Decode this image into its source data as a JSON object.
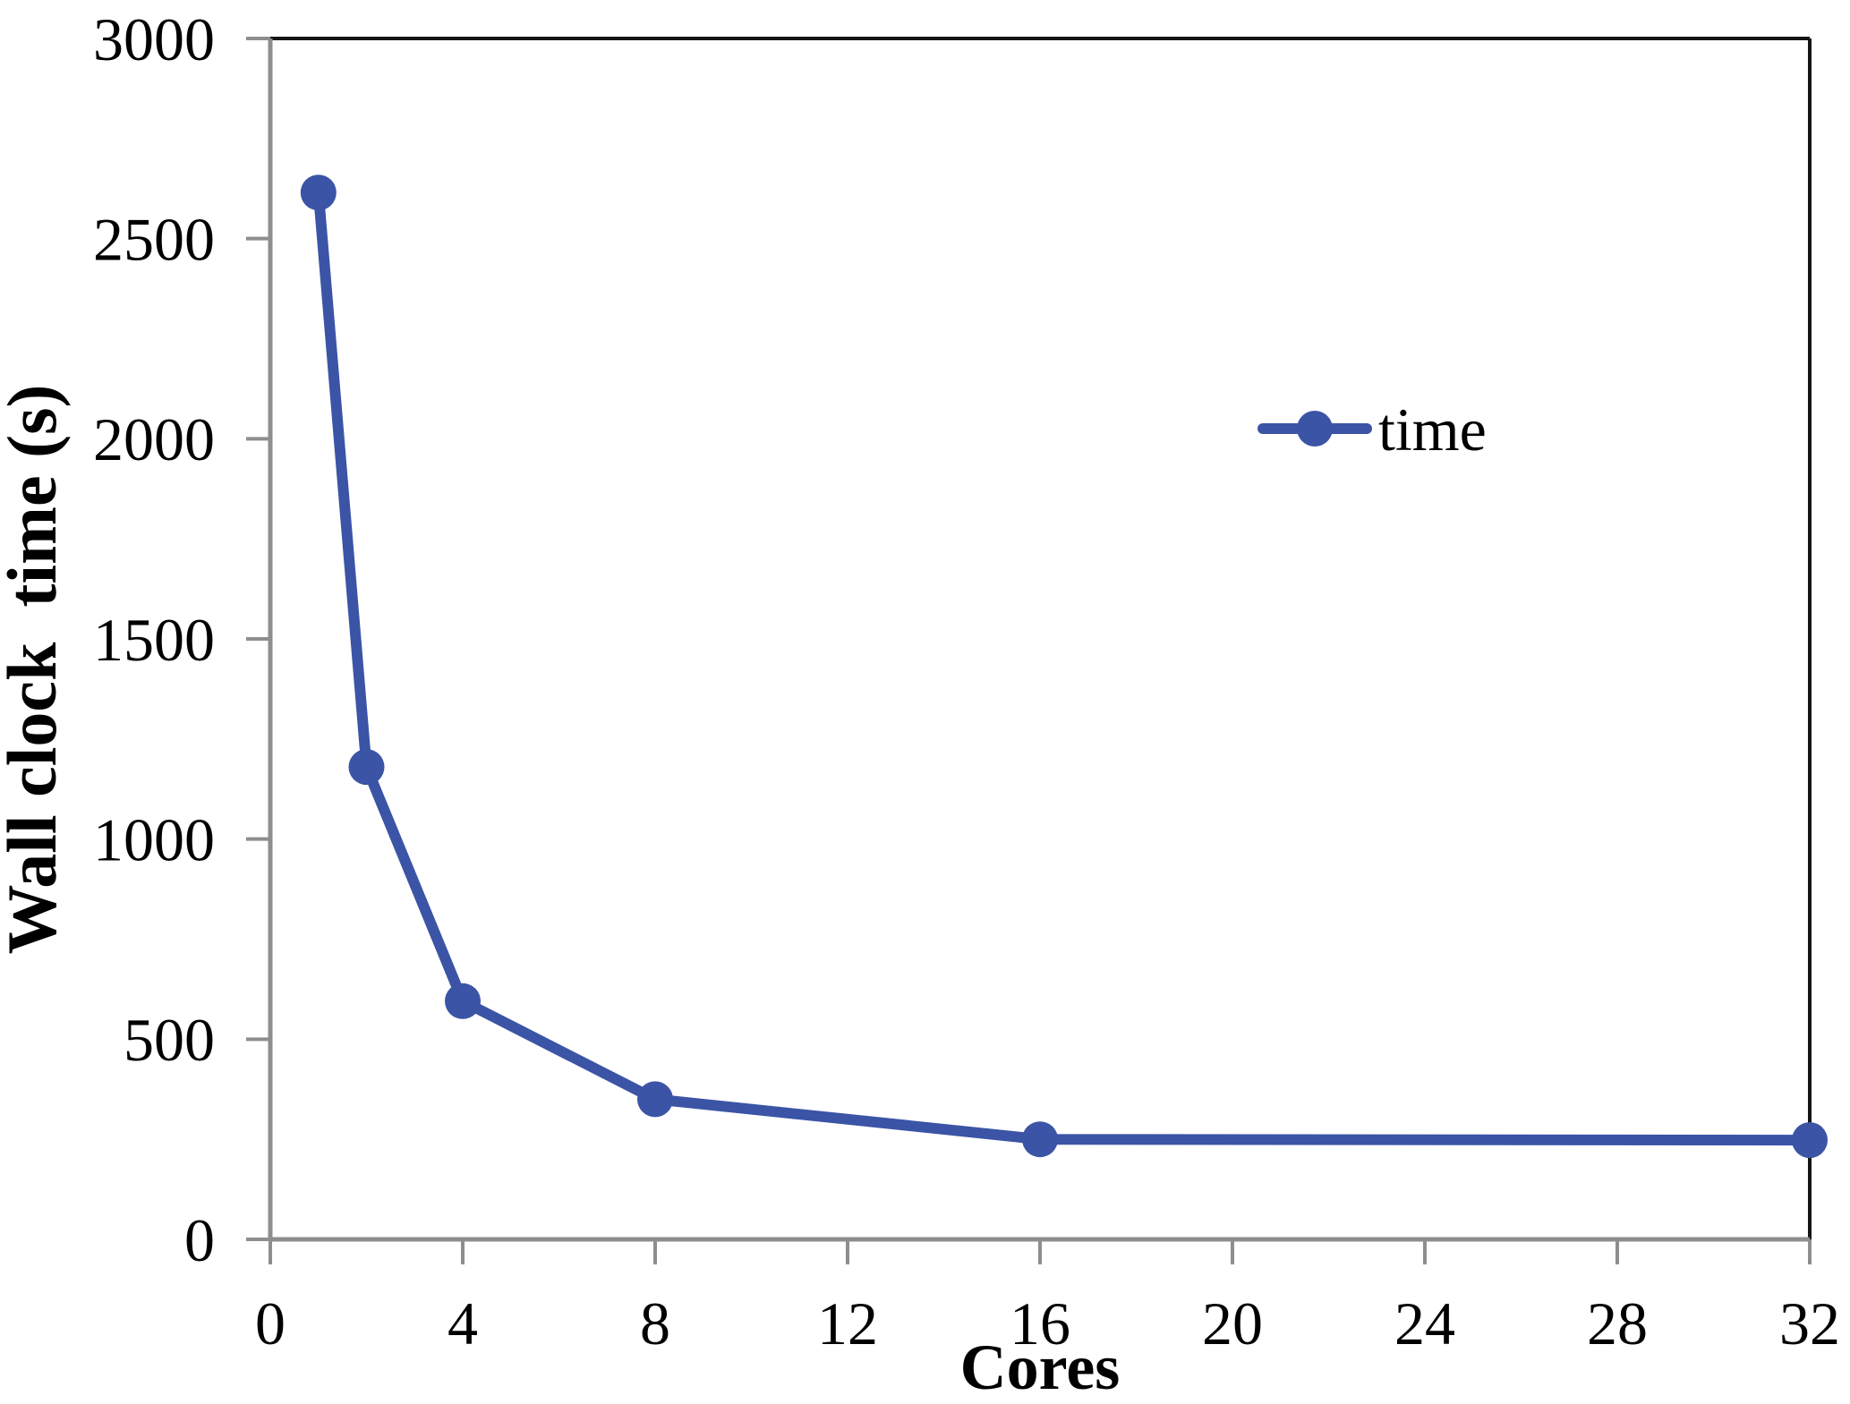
{
  "chart_data": {
    "type": "line",
    "title": "",
    "xlabel": "Cores",
    "ylabel": "Wall clock  time (s)",
    "x": [
      1,
      2,
      4,
      8,
      16,
      32
    ],
    "series": [
      {
        "name": "time",
        "values": [
          2615,
          1180,
          595,
          350,
          250,
          248
        ]
      }
    ],
    "xlim": [
      0,
      32
    ],
    "ylim": [
      0,
      3000
    ],
    "x_ticks": [
      0,
      4,
      8,
      12,
      16,
      20,
      24,
      28,
      32
    ],
    "x_tick_labels": [
      "0",
      "4",
      "8",
      "12",
      "16",
      "20",
      "24",
      "28",
      "32"
    ],
    "y_ticks": [
      0,
      500,
      1000,
      1500,
      2000,
      2500,
      3000
    ],
    "y_tick_labels": [
      "0",
      "500",
      "1000",
      "1500",
      "2000",
      "2500",
      "3000"
    ],
    "grid": false,
    "legend": {
      "label": "time",
      "position": "inside-upper-right"
    }
  },
  "colors": {
    "series": "#3B54A6",
    "axis": "#8E8E8E",
    "frame": "#141414",
    "text": "#000000",
    "background": "#FFFFFF"
  }
}
